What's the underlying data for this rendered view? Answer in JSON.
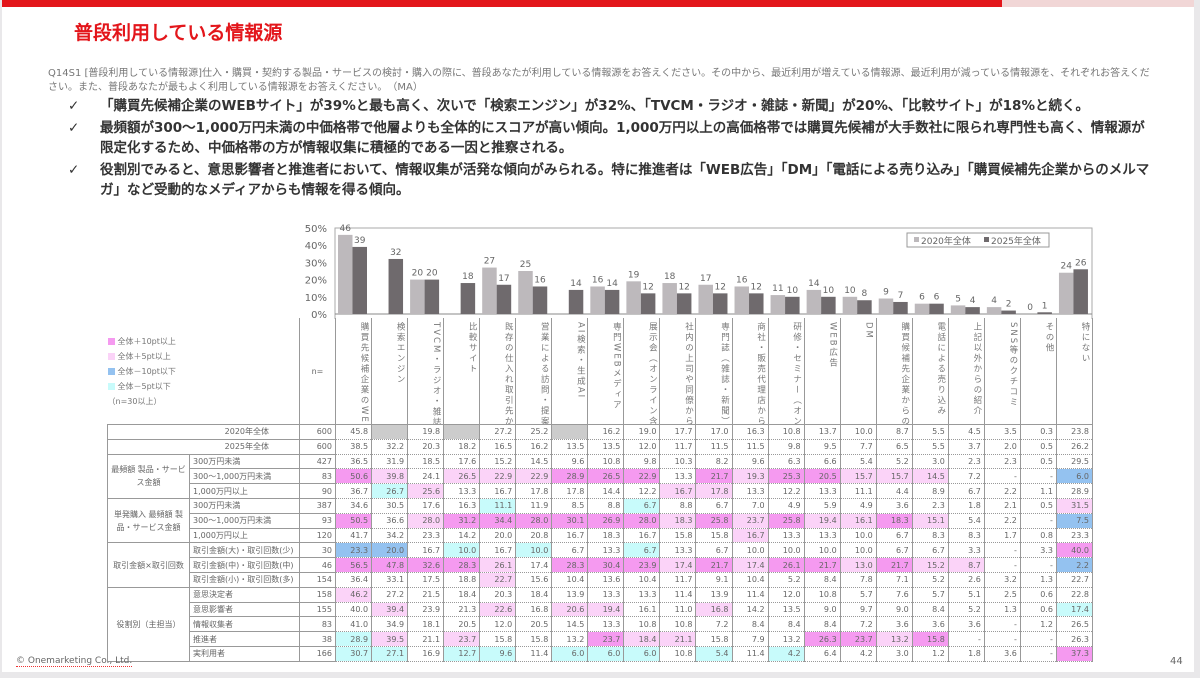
{
  "title": "普段利用している情報源",
  "question": "Q14S1 [普段利用している情報源]仕入・購買・契約する製品・サービスの検討・購入の際に、普段あなたが利用している情報源をお答えください。その中から、最近利用が増えている情報源、最近利用が減っている情報源を、それぞれお答えください。また、普段あなたが最もよく利用している情報源をお答えください。　（MA）",
  "bullets": [
    "「購買先候補企業のWEBサイト」が39%と最も高く、次いで「検索エンジン」が32%、「TVCM・ラジオ・雑誌・新聞」が20%、「比較サイト」が18%と続く。",
    "最頻額が300～1,000万円未満の中価格帯で他層よりも全体的にスコアが高い傾向。1,000万円以上の高価格帯では購買先候補が大手数社に限られ専門性も高く、情報源が限定化するため、中価格帯の方が情報収集に積極的である一因と推察される。",
    "役割別でみると、意思影響者と推進者において、情報収集が活発な傾向がみられる。特に推進者は「WEB広告」「DM」「電話による売り込み」「購買候補先企業からのメルマガ」など受動的なメディアからも情報を得る傾向。"
  ],
  "check_glyph": "✓",
  "chart_data": {
    "type": "bar",
    "categories": [
      "購買先候補企業のWEBサイト",
      "検索エンジン",
      "TVCM・ラジオ・雑誌・新聞",
      "比較サイト",
      "既存の仕入れ取引先からの提案",
      "営業による訪問・提案機会",
      "AI検索・生成AI",
      "専門WEBメディア",
      "展示会（オンライン含む）",
      "社内の上司や同僚からの紹介",
      "専門誌（雑誌・新聞）",
      "商社・販売代理店からの紹介",
      "研修・セミナー（オンライン含む）",
      "WEB広告",
      "DM",
      "購買候補先企業からのメルマガ",
      "電話による売り込み",
      "上記以外からの紹介",
      "SNS等のクチコミ",
      "その他",
      "特にない"
    ],
    "series": [
      {
        "name": "2020年全体",
        "color": "#bdb9bc",
        "values": [
          46,
          null,
          20,
          null,
          27,
          25,
          null,
          16,
          19,
          18,
          17,
          16,
          11,
          14,
          10,
          9,
          6,
          5,
          4,
          0,
          24
        ]
      },
      {
        "name": "2025年全体",
        "color": "#6f6a6d",
        "values": [
          39,
          32,
          20,
          18,
          17,
          16,
          14,
          14,
          12,
          12,
          12,
          12,
          10,
          10,
          8,
          7,
          6,
          4,
          2,
          1,
          26
        ]
      }
    ],
    "yticks": [
      "0%",
      "10%",
      "20%",
      "30%",
      "40%",
      "50%"
    ],
    "ylim": [
      0,
      50
    ],
    "legend": "top-right"
  },
  "table": {
    "n_label": "n=",
    "legend": [
      {
        "cls": "p2",
        "label": "全体＋10pt以上",
        "color": "#f59af0"
      },
      {
        "cls": "p1",
        "label": "全体＋5pt以上",
        "color": "#fbd3f8"
      },
      {
        "cls": "b2",
        "label": "全体－10pt以下",
        "color": "#94c2f0"
      },
      {
        "cls": "b1",
        "label": "全体－5pt以下",
        "color": "#c8fbfb"
      }
    ],
    "legend_note": "（n=30以上）",
    "totals": [
      {
        "label": "2020年全体",
        "n": "600",
        "values": [
          "45.8",
          "",
          "19.8",
          "",
          "27.2",
          "25.2",
          "",
          "16.2",
          "19.0",
          "17.7",
          "17.0",
          "16.3",
          "10.8",
          "13.7",
          "10.0",
          "8.7",
          "5.5",
          "4.5",
          "3.5",
          "0.3",
          "23.8"
        ],
        "hl": {
          "2": "na",
          "4": "na",
          "7": "na"
        }
      },
      {
        "label": "2025年全体",
        "n": "600",
        "values": [
          "38.5",
          "32.2",
          "20.3",
          "18.2",
          "16.5",
          "16.2",
          "13.5",
          "13.5",
          "12.0",
          "11.7",
          "11.5",
          "11.5",
          "9.8",
          "9.5",
          "7.7",
          "6.5",
          "5.5",
          "3.7",
          "2.0",
          "0.5",
          "26.2"
        ],
        "hl": {}
      }
    ],
    "groups": [
      {
        "label": "最頻額 製品・サービス金額",
        "rows": [
          {
            "label": "300万円未満",
            "n": "427",
            "values": [
              "36.5",
              "31.9",
              "18.5",
              "17.6",
              "15.2",
              "14.5",
              "9.6",
              "10.8",
              "9.8",
              "10.3",
              "8.2",
              "9.6",
              "6.3",
              "6.6",
              "5.4",
              "5.2",
              "3.0",
              "2.3",
              "2.3",
              "0.5",
              "29.5"
            ],
            "hl": {}
          },
          {
            "label": "300～1,000万円未満",
            "n": "83",
            "values": [
              "50.6",
              "39.8",
              "24.1",
              "26.5",
              "22.9",
              "22.9",
              "28.9",
              "26.5",
              "22.9",
              "13.3",
              "21.7",
              "19.3",
              "25.3",
              "20.5",
              "15.7",
              "15.7",
              "14.5",
              "7.2",
              "-",
              "-",
              "6.0"
            ],
            "hl": {
              "1": "p2",
              "2": "p1",
              "4": "p1",
              "5": "p1",
              "6": "p1",
              "7": "p2",
              "8": "p2",
              "9": "p2",
              "11": "p2",
              "12": "p1",
              "13": "p2",
              "14": "p2",
              "15": "p1",
              "16": "p1",
              "17": "p1",
              "21": "b2"
            }
          },
          {
            "label": "1,000万円以上",
            "n": "90",
            "values": [
              "36.7",
              "26.7",
              "25.6",
              "13.3",
              "16.7",
              "17.8",
              "17.8",
              "14.4",
              "12.2",
              "16.7",
              "17.8",
              "13.3",
              "12.2",
              "13.3",
              "11.1",
              "4.4",
              "8.9",
              "6.7",
              "2.2",
              "1.1",
              "28.9"
            ],
            "hl": {
              "2": "b1",
              "3": "p1",
              "10": "p1",
              "11": "p1"
            }
          }
        ]
      },
      {
        "label": "単発購入 最頻額 製品・サービス金額",
        "rows": [
          {
            "label": "300万円未満",
            "n": "387",
            "values": [
              "34.6",
              "30.5",
              "17.6",
              "16.3",
              "11.1",
              "11.9",
              "8.5",
              "8.8",
              "6.7",
              "8.8",
              "6.7",
              "7.0",
              "4.9",
              "5.9",
              "4.9",
              "3.6",
              "2.3",
              "1.8",
              "2.1",
              "0.5",
              "31.5"
            ],
            "hl": {
              "5": "b1",
              "9": "b1",
              "21": "p1"
            }
          },
          {
            "label": "300～1,000万円未満",
            "n": "93",
            "values": [
              "50.5",
              "36.6",
              "28.0",
              "31.2",
              "34.4",
              "28.0",
              "30.1",
              "26.9",
              "28.0",
              "18.3",
              "25.8",
              "23.7",
              "25.8",
              "19.4",
              "16.1",
              "18.3",
              "15.1",
              "5.4",
              "2.2",
              "-",
              "7.5"
            ],
            "hl": {
              "1": "p2",
              "3": "p1",
              "4": "p2",
              "5": "p2",
              "6": "p2",
              "7": "p2",
              "8": "p2",
              "9": "p2",
              "10": "p1",
              "11": "p2",
              "12": "p1",
              "13": "p2",
              "14": "p1",
              "15": "p1",
              "16": "p2",
              "17": "p1",
              "21": "b2"
            }
          },
          {
            "label": "1,000万円以上",
            "n": "120",
            "values": [
              "41.7",
              "34.2",
              "23.3",
              "14.2",
              "20.0",
              "20.8",
              "16.7",
              "18.3",
              "16.7",
              "15.8",
              "15.8",
              "16.7",
              "13.3",
              "13.3",
              "10.0",
              "6.7",
              "8.3",
              "8.3",
              "1.7",
              "0.8",
              "23.3"
            ],
            "hl": {
              "12": "p1"
            }
          }
        ]
      },
      {
        "label": "取引金額×取引回数",
        "rows": [
          {
            "label": "取引金額(大)・取引回数(少)",
            "n": "30",
            "values": [
              "23.3",
              "20.0",
              "16.7",
              "10.0",
              "16.7",
              "10.0",
              "6.7",
              "13.3",
              "6.7",
              "13.3",
              "6.7",
              "10.0",
              "10.0",
              "10.0",
              "10.0",
              "6.7",
              "6.7",
              "3.3",
              "-",
              "3.3",
              "40.0"
            ],
            "hl": {
              "1": "b2",
              "2": "b2",
              "4": "b1",
              "6": "b1",
              "9": "b1",
              "21": "p2"
            }
          },
          {
            "label": "取引金額(中)・取引回数(中)",
            "n": "46",
            "values": [
              "56.5",
              "47.8",
              "32.6",
              "28.3",
              "26.1",
              "17.4",
              "28.3",
              "30.4",
              "23.9",
              "17.4",
              "21.7",
              "17.4",
              "26.1",
              "21.7",
              "13.0",
              "21.7",
              "15.2",
              "8.7",
              "-",
              "-",
              "2.2"
            ],
            "hl": {
              "1": "p2",
              "2": "p2",
              "3": "p2",
              "4": "p2",
              "5": "p1",
              "7": "p2",
              "8": "p2",
              "9": "p2",
              "10": "p1",
              "11": "p2",
              "12": "p1",
              "13": "p2",
              "14": "p2",
              "15": "p1",
              "16": "p2",
              "17": "p1",
              "18": "p1",
              "21": "b2"
            }
          },
          {
            "label": "取引金額(小)・取引回数(多)",
            "n": "154",
            "values": [
              "36.4",
              "33.1",
              "17.5",
              "18.8",
              "22.7",
              "15.6",
              "10.4",
              "13.6",
              "10.4",
              "11.7",
              "9.1",
              "10.4",
              "5.2",
              "8.4",
              "7.8",
              "7.1",
              "5.2",
              "2.6",
              "3.2",
              "1.3",
              "22.7"
            ],
            "hl": {
              "5": "p1"
            }
          }
        ]
      },
      {
        "label": "役割別（主担当）",
        "rows": [
          {
            "label": "意思決定者",
            "n": "158",
            "values": [
              "46.2",
              "27.2",
              "21.5",
              "18.4",
              "20.3",
              "18.4",
              "13.9",
              "13.3",
              "13.3",
              "11.4",
              "13.9",
              "11.4",
              "12.0",
              "10.8",
              "5.7",
              "7.6",
              "5.7",
              "5.1",
              "2.5",
              "0.6",
              "22.8"
            ],
            "hl": {
              "1": "p1"
            }
          },
          {
            "label": "意思影響者",
            "n": "155",
            "values": [
              "40.0",
              "39.4",
              "23.9",
              "21.3",
              "22.6",
              "16.8",
              "20.6",
              "19.4",
              "16.1",
              "11.0",
              "16.8",
              "14.2",
              "13.5",
              "9.0",
              "9.7",
              "9.0",
              "8.4",
              "5.2",
              "1.3",
              "0.6",
              "17.4"
            ],
            "hl": {
              "2": "p1",
              "5": "p1",
              "7": "p1",
              "8": "p1",
              "11": "p1",
              "21": "b1"
            }
          },
          {
            "label": "情報収集者",
            "n": "83",
            "values": [
              "41.0",
              "34.9",
              "18.1",
              "20.5",
              "12.0",
              "20.5",
              "14.5",
              "13.3",
              "10.8",
              "10.8",
              "7.2",
              "8.4",
              "8.4",
              "8.4",
              "7.2",
              "3.6",
              "3.6",
              "3.6",
              "-",
              "1.2",
              "26.5"
            ],
            "hl": {}
          },
          {
            "label": "推進者",
            "n": "38",
            "values": [
              "28.9",
              "39.5",
              "21.1",
              "23.7",
              "15.8",
              "15.8",
              "13.2",
              "23.7",
              "18.4",
              "21.1",
              "15.8",
              "7.9",
              "13.2",
              "26.3",
              "23.7",
              "13.2",
              "15.8",
              "-",
              "-",
              "-",
              "26.3"
            ],
            "hl": {
              "1": "b1",
              "2": "p1",
              "4": "p1",
              "8": "p2",
              "9": "p1",
              "10": "p1",
              "14": "p2",
              "15": "p2",
              "16": "p1",
              "17": "p2"
            }
          },
          {
            "label": "実利用者",
            "n": "166",
            "values": [
              "30.7",
              "27.1",
              "16.9",
              "12.7",
              "9.6",
              "11.4",
              "6.0",
              "6.0",
              "6.0",
              "10.8",
              "5.4",
              "11.4",
              "4.2",
              "6.4",
              "4.2",
              "3.0",
              "1.2",
              "1.8",
              "3.6",
              "-",
              "37.3"
            ],
            "hl": {
              "1": "b1",
              "2": "b1",
              "4": "b1",
              "5": "b1",
              "7": "b1",
              "8": "b1",
              "9": "b1",
              "11": "b1",
              "13": "b1",
              "21": "p2"
            }
          }
        ]
      }
    ]
  },
  "footer": {
    "copyright": "© Onemarketing Co., Ltd.",
    "page": "44"
  }
}
